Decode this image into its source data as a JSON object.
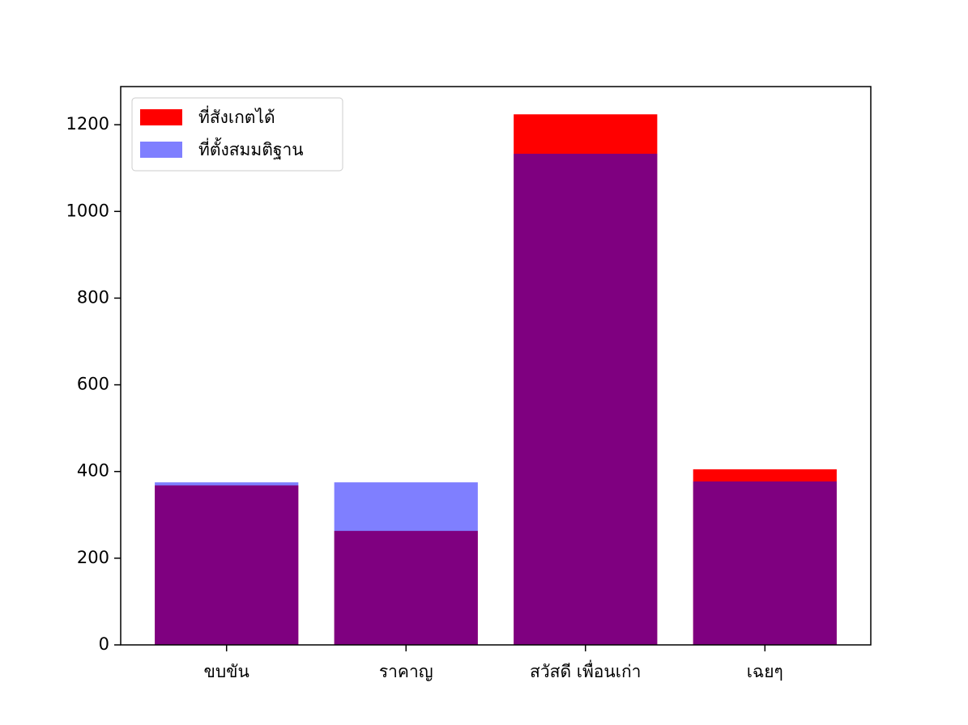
{
  "chart_data": {
    "type": "bar",
    "categories": [
      "ขบขัน",
      "ราคาญ",
      "สวัสดี เพื่อนเก่า",
      "เฉยๆ"
    ],
    "series": [
      {
        "name": "ที่สังเกตได้",
        "color": "#ff0000",
        "opacity": 1,
        "values": [
          368,
          263,
          1224,
          405
        ]
      },
      {
        "name": "ที่ตั้งสมมติฐาน",
        "color": "#0000ff",
        "opacity": 0.5,
        "values": [
          375,
          375,
          1133,
          377
        ]
      }
    ],
    "ylim": [
      0,
      1288
    ],
    "yticks": [
      0,
      200,
      400,
      600,
      800,
      1000,
      1200
    ],
    "legend": "upper left"
  }
}
